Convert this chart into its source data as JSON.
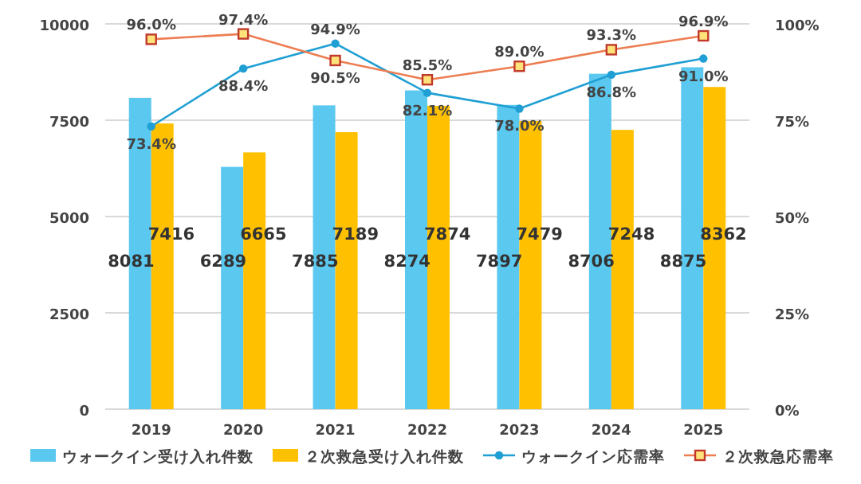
{
  "chart_data": {
    "type": "bar",
    "categories": [
      "2019",
      "2020",
      "2021",
      "2022",
      "2023",
      "2024",
      "2025"
    ],
    "series": [
      {
        "name": "ウォークイン受け入れ件数",
        "color": "#5bc8f0",
        "values": [
          8081,
          6289,
          7885,
          8274,
          7897,
          8706,
          8875
        ],
        "value_labels": [
          "8081",
          "6289",
          "7885",
          "8274",
          "7897",
          "8706",
          "8875"
        ]
      },
      {
        "name": "２次救急受け入れ件数",
        "color": "#ffc000",
        "values": [
          7416,
          6665,
          7189,
          7874,
          7479,
          7248,
          8362
        ],
        "value_labels": [
          "7416",
          "6665",
          "7189",
          "7874",
          "7479",
          "7248",
          "8362"
        ]
      },
      {
        "name": "ウォークイン応需率",
        "type": "line",
        "axis": "y2",
        "marker": "circle",
        "color": "#1f9fd3",
        "values": [
          73.4,
          88.4,
          94.9,
          82.1,
          78.0,
          86.8,
          91.0
        ],
        "value_labels": [
          "73.4%",
          "88.4%",
          "94.9%",
          "82.1%",
          "78.0%",
          "86.8%",
          "91.0%"
        ]
      },
      {
        "name": "２次救急応需率",
        "type": "line",
        "axis": "y2",
        "marker": "square",
        "color": "#ed7d52",
        "values": [
          96.0,
          97.4,
          90.5,
          85.5,
          89.0,
          93.3,
          96.9
        ],
        "value_labels": [
          "96.0%",
          "97.4%",
          "90.5%",
          "85.5%",
          "89.0%",
          "93.3%",
          "96.9%"
        ]
      }
    ],
    "ylim": [
      0,
      10000
    ],
    "yticks": [
      0,
      2500,
      5000,
      7500,
      10000
    ],
    "y2lim": [
      0,
      100
    ],
    "y2ticks": [
      {
        "value": 0,
        "label": "0%"
      },
      {
        "value": 25,
        "label": "25%"
      },
      {
        "value": 50,
        "label": "50%"
      },
      {
        "value": 75,
        "label": "75%"
      },
      {
        "value": 100,
        "label": "100%"
      }
    ],
    "grid": "y",
    "legend": "bottom"
  }
}
